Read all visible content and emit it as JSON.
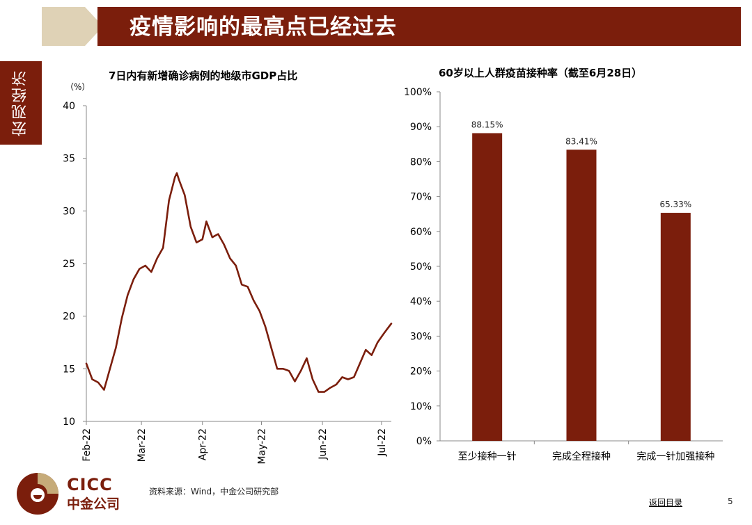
{
  "header": {
    "title": "疫情影响的最高点已经过去"
  },
  "side_tab": {
    "label": "宏观经济"
  },
  "footer": {
    "logo_en": "CICC",
    "logo_cn": "中金公司",
    "source": "资料来源：Wind，中金公司研究部",
    "back_link": "返回目录",
    "page_number": "5"
  },
  "colors": {
    "brand": "#7b1e0c",
    "line": "#7b1e0c",
    "bar": "#7b1e0c"
  },
  "chart_data": [
    {
      "type": "line",
      "title": "7日内有新增确诊病例的地级市GDP占比",
      "ylabel": "（%）",
      "ylim": [
        10,
        40
      ],
      "yticks": [
        10,
        15,
        20,
        25,
        30,
        35,
        40
      ],
      "xticks": [
        "Feb-22",
        "Mar-22",
        "Apr-22",
        "May-22",
        "Jun-22",
        "Jul-22"
      ],
      "xlim": [
        "2022-02-01",
        "2022-07-06"
      ],
      "series": [
        {
          "x": [
            "2022-02-01",
            "2022-02-04",
            "2022-02-07",
            "2022-02-10",
            "2022-02-13",
            "2022-02-16",
            "2022-02-19",
            "2022-02-22",
            "2022-02-25",
            "2022-02-28",
            "2022-03-03",
            "2022-03-06",
            "2022-03-09",
            "2022-03-12",
            "2022-03-15",
            "2022-03-18",
            "2022-03-19",
            "2022-03-20",
            "2022-03-23",
            "2022-03-26",
            "2022-03-29",
            "2022-04-01",
            "2022-04-03",
            "2022-04-06",
            "2022-04-09",
            "2022-04-12",
            "2022-04-15",
            "2022-04-18",
            "2022-04-21",
            "2022-04-24",
            "2022-04-27",
            "2022-04-30",
            "2022-05-03",
            "2022-05-06",
            "2022-05-09",
            "2022-05-12",
            "2022-05-15",
            "2022-05-18",
            "2022-05-21",
            "2022-05-24",
            "2022-05-27",
            "2022-05-30",
            "2022-06-02",
            "2022-06-05",
            "2022-06-08",
            "2022-06-11",
            "2022-06-14",
            "2022-06-17",
            "2022-06-20",
            "2022-06-23",
            "2022-06-26",
            "2022-06-29",
            "2022-07-02",
            "2022-07-04",
            "2022-07-06"
          ],
          "values": [
            15.5,
            14,
            13.7,
            13,
            15,
            17,
            19.8,
            22,
            23.5,
            24.5,
            24.8,
            24.2,
            25.5,
            26.5,
            31,
            33.2,
            33.6,
            33,
            31.5,
            28.5,
            27,
            27.3,
            29,
            27.5,
            27.8,
            26.8,
            25.5,
            24.8,
            23,
            22.8,
            21.5,
            20.5,
            19,
            17,
            15,
            15,
            14.8,
            13.8,
            14.8,
            16,
            14,
            12.8,
            12.8,
            13.2,
            13.5,
            14.2,
            14,
            14.2,
            15.5,
            16.8,
            16.3,
            17.5,
            18.3,
            18.8,
            19.3
          ]
        }
      ]
    },
    {
      "type": "bar",
      "title": "60岁以上人群疫苗接种率（截至6月28日）",
      "categories": [
        "至少接种一针",
        "完成全程接种",
        "完成一针加强接种"
      ],
      "values": [
        88.15,
        83.41,
        65.33
      ],
      "value_labels": [
        "88.15%",
        "83.41%",
        "65.33%"
      ],
      "ylim": [
        0,
        100
      ],
      "yticks": [
        "0%",
        "10%",
        "20%",
        "30%",
        "40%",
        "50%",
        "60%",
        "70%",
        "80%",
        "90%",
        "100%"
      ]
    }
  ]
}
